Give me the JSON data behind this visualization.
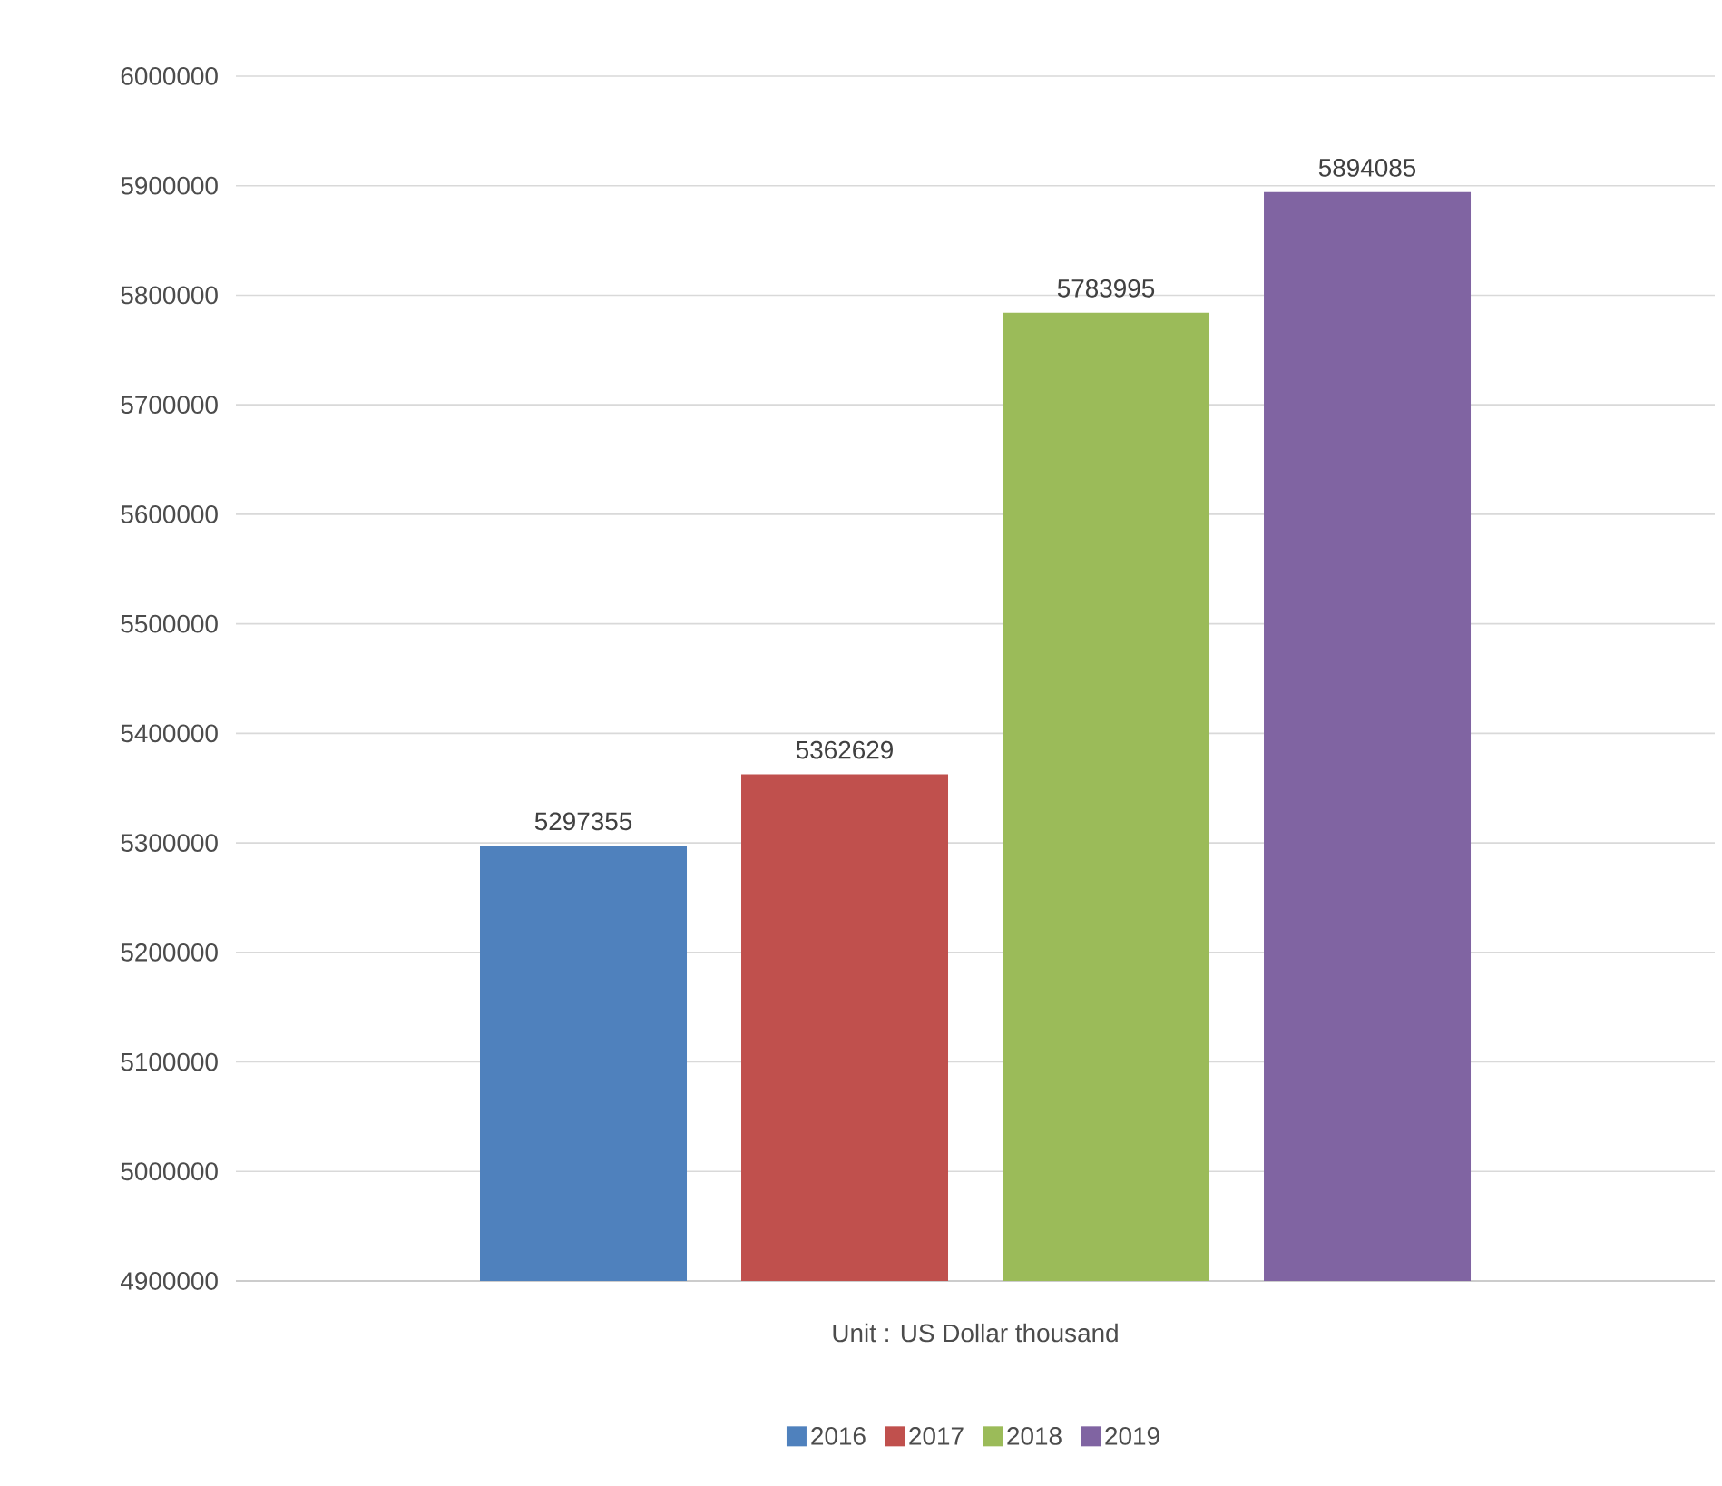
{
  "chart_data": {
    "type": "bar",
    "xlabel": "Unit : US Dollar thousand",
    "categories": [
      null
    ],
    "series": [
      {
        "name": "2016",
        "color": "#4f81bd",
        "values": [
          5297355
        ]
      },
      {
        "name": "2017",
        "color": "#c0504d",
        "values": [
          5362629
        ]
      },
      {
        "name": "2018",
        "color": "#9bbb59",
        "values": [
          5783995
        ]
      },
      {
        "name": "2019",
        "color": "#8064a2",
        "values": [
          5894085
        ]
      }
    ],
    "ylim": [
      4900000,
      6000000
    ],
    "yticks": [
      4900000,
      5000000,
      5100000,
      5200000,
      5300000,
      5400000,
      5500000,
      5600000,
      5700000,
      5800000,
      5900000,
      6000000
    ],
    "grid": "y",
    "legend": "bottom",
    "data_labels": true
  }
}
